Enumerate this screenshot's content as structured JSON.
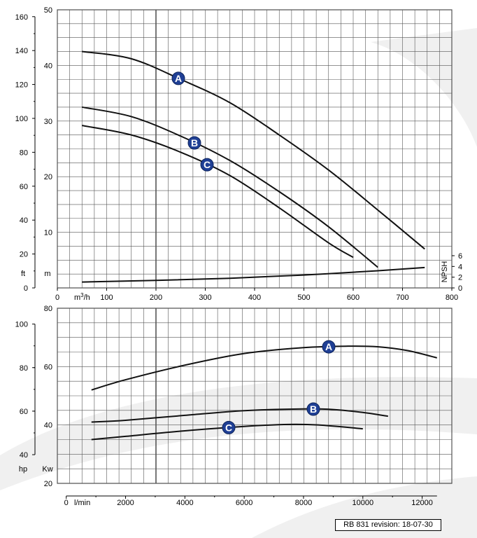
{
  "footer": {
    "revision": "RB 831  revision: 18-07-30"
  },
  "colors": {
    "grid": "#555555",
    "curve": "#111111",
    "badge": "#1f3f95",
    "swoosh": "#f0f0f0"
  },
  "chart_data": [
    {
      "type": "line",
      "panel": "head-and-npsh",
      "x_axis": {
        "unit_label": "m3/h",
        "range": [
          0,
          800
        ],
        "ticks": [
          0,
          100,
          200,
          300,
          400,
          500,
          600,
          700,
          800
        ]
      },
      "y_axis_m": {
        "unit_label": "m",
        "range": [
          0,
          50
        ],
        "ticks": [
          10,
          20,
          30,
          40,
          50
        ]
      },
      "y_axis_ft": {
        "unit_label": "ft",
        "range_in_m": [
          0,
          50
        ],
        "ticks": [
          0,
          20,
          40,
          60,
          80,
          100,
          120,
          140,
          160
        ]
      },
      "y_axis_npsh": {
        "unit_label": "NPSH",
        "range": [
          0,
          6
        ],
        "ticks": [
          0,
          2,
          4,
          6
        ]
      },
      "grid": true,
      "series": [
        {
          "name": "A",
          "x": [
            50,
            150,
            250,
            350,
            450,
            550,
            650,
            745
          ],
          "y": [
            42.5,
            41.2,
            37.5,
            33.3,
            27.5,
            21.2,
            14,
            7
          ]
        },
        {
          "name": "B",
          "x": [
            50,
            150,
            250,
            350,
            450,
            550,
            650
          ],
          "y": [
            32.5,
            30.8,
            27.3,
            22.9,
            17.3,
            11,
            3.7
          ]
        },
        {
          "name": "C",
          "x": [
            50,
            150,
            250,
            350,
            450,
            550,
            600
          ],
          "y": [
            29.2,
            27.5,
            24.4,
            20.2,
            14.4,
            8.1,
            5.5
          ]
        },
        {
          "name": "NPSH",
          "x": [
            50,
            200,
            350,
            500,
            650,
            745
          ],
          "y": [
            1.1,
            1.4,
            1.8,
            2.4,
            3.2,
            3.8
          ]
        }
      ]
    },
    {
      "type": "line",
      "panel": "power",
      "x_axis": {
        "unit_label": "l/min",
        "range": [
          -300,
          13000
        ],
        "ticks": [
          0,
          2000,
          4000,
          6000,
          8000,
          10000,
          12000
        ]
      },
      "y_axis_kw": {
        "unit_label": "Kw",
        "range": [
          20,
          80
        ],
        "ticks": [
          20,
          40,
          60,
          80
        ]
      },
      "y_axis_hp": {
        "unit_label": "hp",
        "range_in_kw": [
          20,
          80
        ],
        "ticks": [
          40,
          60,
          80,
          100
        ]
      },
      "grid": true,
      "series": [
        {
          "name": "A",
          "x": [
            850,
            2000,
            4000,
            6000,
            8000,
            9500,
            10500,
            11500,
            12500
          ],
          "y": [
            52,
            55.5,
            60.5,
            64.5,
            66.5,
            67,
            66.8,
            65.5,
            63
          ]
        },
        {
          "name": "B",
          "x": [
            850,
            2000,
            4000,
            6000,
            8000,
            9000,
            10000,
            10850
          ],
          "y": [
            41,
            41.6,
            43.3,
            44.9,
            45.5,
            45.3,
            44.3,
            43
          ]
        },
        {
          "name": "C",
          "x": [
            850,
            2000,
            4000,
            6000,
            7500,
            8500,
            10000
          ],
          "y": [
            35,
            36.1,
            38,
            39.5,
            40.2,
            40,
            38.7
          ]
        }
      ]
    }
  ]
}
